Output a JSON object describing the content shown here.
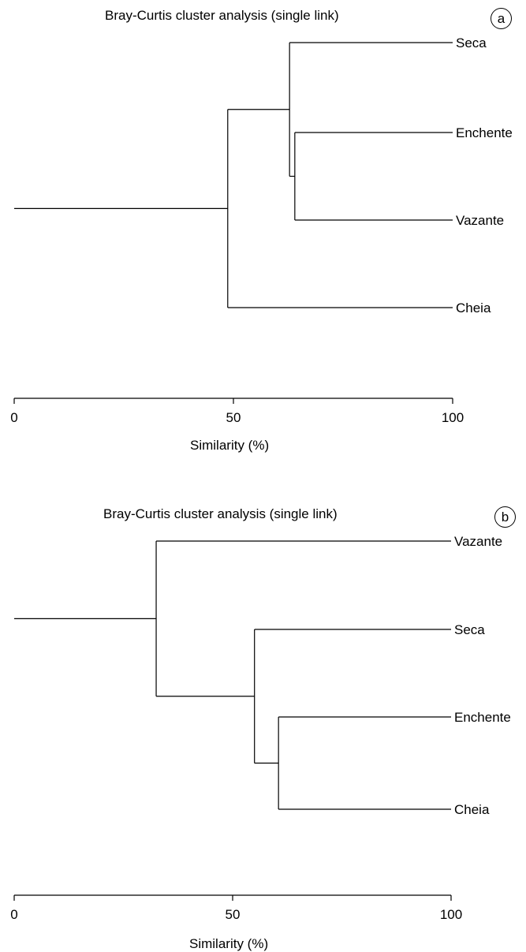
{
  "chart_data": [
    {
      "type": "dendrogram",
      "panel_label": "a",
      "title": "Bray-Curtis cluster analysis (single link)",
      "xlabel": "Similarity (%)",
      "xlim": [
        0,
        100
      ],
      "ticks": [
        "0",
        "50",
        "100"
      ],
      "tick_values": [
        0,
        50,
        100
      ],
      "leaves": [
        "Seca",
        "Enchente",
        "Vazante",
        "Cheia"
      ],
      "merges": [
        {
          "a": "Enchente",
          "b": "Vazante",
          "similarity": 64
        },
        {
          "a": "Seca",
          "b": "Enchente+Vazante",
          "similarity": 62.8
        },
        {
          "a": "Seca+Enchente+Vazante",
          "b": "Cheia",
          "similarity": 48.7
        }
      ]
    },
    {
      "type": "dendrogram",
      "panel_label": "b",
      "title": "Bray-Curtis cluster analysis (single link)",
      "xlabel": "Similarity (%)",
      "xlim": [
        0,
        100
      ],
      "ticks": [
        "0",
        "50",
        "100"
      ],
      "tick_values": [
        0,
        50,
        100
      ],
      "leaves": [
        "Vazante",
        "Seca",
        "Enchente",
        "Cheia"
      ],
      "merges": [
        {
          "a": "Enchente",
          "b": "Cheia",
          "similarity": 60.5
        },
        {
          "a": "Seca",
          "b": "Enchente+Cheia",
          "similarity": 55
        },
        {
          "a": "Vazante",
          "b": "Seca+Enchente+Cheia",
          "similarity": 32.5
        }
      ]
    }
  ]
}
